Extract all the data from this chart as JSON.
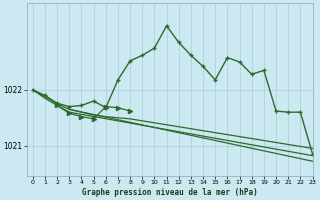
{
  "title": "Graphe pression niveau de la mer (hPa)",
  "background_color": "#cce8f0",
  "grid_color": "#aaccd8",
  "line_color": "#2d6a2d",
  "xlim": [
    -0.5,
    23
  ],
  "ylim": [
    1020.45,
    1023.55
  ],
  "yticks": [
    1021,
    1022
  ],
  "xticks": [
    0,
    1,
    2,
    3,
    4,
    5,
    6,
    7,
    8,
    9,
    10,
    11,
    12,
    13,
    14,
    15,
    16,
    17,
    18,
    19,
    20,
    21,
    22,
    23
  ],
  "series": [
    {
      "x": [
        0,
        1,
        2,
        3,
        4,
        5,
        6,
        7,
        8,
        9,
        10,
        11,
        12,
        13,
        14,
        15,
        16,
        17,
        18,
        19,
        20,
        21,
        22,
        23
      ],
      "y": [
        1022.0,
        1021.9,
        1021.76,
        1021.7,
        1021.72,
        1021.8,
        1021.68,
        1022.18,
        1022.52,
        1022.62,
        1022.75,
        1023.15,
        1022.85,
        1022.62,
        1022.42,
        1022.18,
        1022.58,
        1022.5,
        1022.28,
        1022.35,
        1021.62,
        1021.6,
        1021.6,
        1020.85
      ],
      "marker": "+",
      "markersize": 3.5,
      "linewidth": 1.0,
      "linestyle": "-"
    },
    {
      "x": [
        0,
        1,
        2,
        3,
        23
      ],
      "y": [
        1022.0,
        1021.88,
        1021.75,
        1021.65,
        1020.72
      ],
      "marker": null,
      "linewidth": 0.9,
      "linestyle": "-"
    },
    {
      "x": [
        0,
        1,
        2,
        3,
        23
      ],
      "y": [
        1022.0,
        1021.85,
        1021.72,
        1021.6,
        1020.82
      ],
      "marker": null,
      "linewidth": 0.9,
      "linestyle": "-"
    },
    {
      "x": [
        3,
        4,
        5,
        6,
        7,
        8,
        23
      ],
      "y": [
        1021.65,
        1021.6,
        1021.55,
        1021.52,
        1021.5,
        1021.48,
        1020.95
      ],
      "marker": null,
      "linewidth": 0.9,
      "linestyle": "-"
    },
    {
      "x": [
        2,
        3,
        4,
        5,
        6,
        7,
        8
      ],
      "y": [
        1021.72,
        1021.58,
        1021.52,
        1021.48,
        1021.7,
        1021.68,
        1021.62
      ],
      "marker": ">",
      "markersize": 3.0,
      "linewidth": 0.9,
      "linestyle": "-"
    }
  ]
}
